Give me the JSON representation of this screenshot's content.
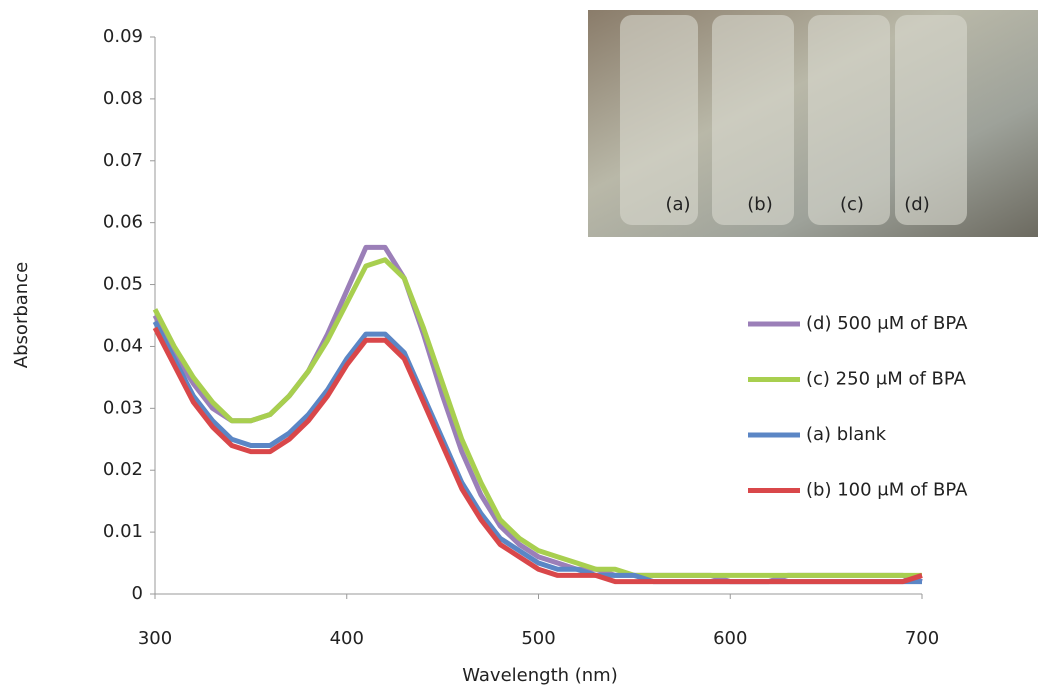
{
  "chart_data": {
    "type": "line",
    "xlabel": "Wavelength (nm)",
    "ylabel": "Absorbance",
    "x": [
      300,
      310,
      320,
      330,
      340,
      350,
      360,
      370,
      380,
      390,
      400,
      410,
      420,
      430,
      440,
      450,
      460,
      470,
      480,
      490,
      500,
      510,
      520,
      530,
      540,
      550,
      560,
      570,
      580,
      590,
      600,
      610,
      620,
      630,
      640,
      650,
      660,
      670,
      680,
      690,
      700
    ],
    "series": [
      {
        "name": "(d) 500 μM of BPA",
        "color": "#9b7fb8",
        "values": [
          0.045,
          0.039,
          0.034,
          0.03,
          0.028,
          0.028,
          0.029,
          0.032,
          0.036,
          0.042,
          0.049,
          0.056,
          0.056,
          0.051,
          0.042,
          0.032,
          0.023,
          0.016,
          0.011,
          0.008,
          0.006,
          0.005,
          0.004,
          0.004,
          0.003,
          0.003,
          0.003,
          0.003,
          0.003,
          0.003,
          0.002,
          0.002,
          0.002,
          0.003,
          0.003,
          0.003,
          0.003,
          0.003,
          0.003,
          0.003,
          0.002
        ]
      },
      {
        "name": "(c) 250 μM of BPA",
        "color": "#a8cf4f",
        "values": [
          0.046,
          0.04,
          0.035,
          0.031,
          0.028,
          0.028,
          0.029,
          0.032,
          0.036,
          0.041,
          0.047,
          0.053,
          0.054,
          0.051,
          0.043,
          0.034,
          0.025,
          0.018,
          0.012,
          0.009,
          0.007,
          0.006,
          0.005,
          0.004,
          0.004,
          0.003,
          0.003,
          0.003,
          0.003,
          0.003,
          0.003,
          0.003,
          0.003,
          0.003,
          0.003,
          0.003,
          0.003,
          0.003,
          0.003,
          0.003,
          0.003
        ]
      },
      {
        "name": "(a) blank",
        "color": "#5b86c5",
        "values": [
          0.044,
          0.038,
          0.032,
          0.028,
          0.025,
          0.024,
          0.024,
          0.026,
          0.029,
          0.033,
          0.038,
          0.042,
          0.042,
          0.039,
          0.032,
          0.025,
          0.018,
          0.013,
          0.009,
          0.007,
          0.005,
          0.004,
          0.004,
          0.003,
          0.003,
          0.003,
          0.002,
          0.002,
          0.002,
          0.002,
          0.002,
          0.002,
          0.002,
          0.002,
          0.002,
          0.002,
          0.002,
          0.002,
          0.002,
          0.002,
          0.002
        ]
      },
      {
        "name": "(b) 100 μM of BPA",
        "color": "#d9474a",
        "values": [
          0.043,
          0.037,
          0.031,
          0.027,
          0.024,
          0.023,
          0.023,
          0.025,
          0.028,
          0.032,
          0.037,
          0.041,
          0.041,
          0.038,
          0.031,
          0.024,
          0.017,
          0.012,
          0.008,
          0.006,
          0.004,
          0.003,
          0.003,
          0.003,
          0.002,
          0.002,
          0.002,
          0.002,
          0.002,
          0.002,
          0.002,
          0.002,
          0.002,
          0.002,
          0.002,
          0.002,
          0.002,
          0.002,
          0.002,
          0.002,
          0.003
        ]
      }
    ],
    "xlim": [
      300,
      700
    ],
    "xticks": [
      300,
      400,
      500,
      600,
      700
    ],
    "ylim": [
      0,
      0.09
    ],
    "yticks": [
      0,
      0.01,
      0.02,
      0.03,
      0.04,
      0.05,
      0.06,
      0.07,
      0.08,
      0.09
    ],
    "grid": false,
    "legend": "right"
  },
  "photo": {
    "labels": [
      "(a)",
      "(b)",
      "(c)",
      "(d)"
    ]
  }
}
